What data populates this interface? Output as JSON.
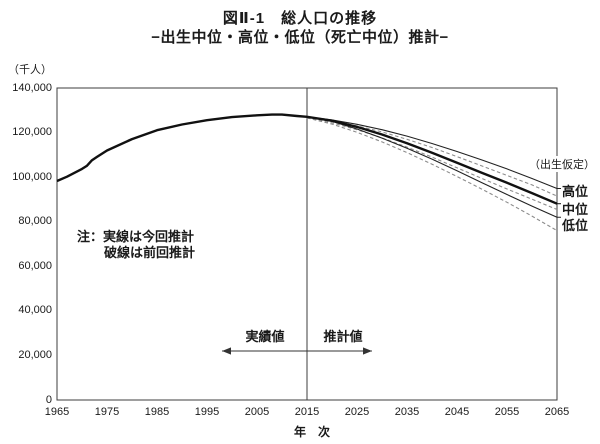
{
  "page": {
    "background": "#ffffff",
    "text_color": "#1a1a1a"
  },
  "chart_data": {
    "type": "line",
    "title": "図Ⅱ-1　総人口の推移",
    "subtitle": "−出生中位・高位・低位（死亡中位）推計−",
    "y_unit_label": "（千人）",
    "x_axis_label": "年　次",
    "xlim": [
      1965,
      2065
    ],
    "ylim": [
      0,
      140000
    ],
    "grid": false,
    "divider_year": 2015,
    "x_ticks": [
      "1965",
      "1975",
      "1985",
      "1995",
      "2005",
      "2015",
      "2025",
      "2035",
      "2045",
      "2055",
      "2065"
    ],
    "x_tick_values": [
      1965,
      1975,
      1985,
      1995,
      2005,
      2015,
      2025,
      2035,
      2045,
      2055,
      2065
    ],
    "y_ticks": [
      {
        "value": 0,
        "label": "0"
      },
      {
        "value": 20000,
        "label": "20,000"
      },
      {
        "value": 40000,
        "label": "40,000"
      },
      {
        "value": 60000,
        "label": "60,000"
      },
      {
        "value": 80000,
        "label": "80,000"
      },
      {
        "value": 100000,
        "label": "100,000"
      },
      {
        "value": 120000,
        "label": "120,000"
      },
      {
        "value": 140000,
        "label": "140,000"
      }
    ],
    "series": [
      {
        "key": "actual",
        "name": "実績値（総人口）",
        "line": "solid",
        "weight": "thick",
        "color": "#111111",
        "x": [
          1965,
          1967,
          1970,
          1971,
          1972,
          1973,
          1975,
          1980,
          1985,
          1990,
          1995,
          2000,
          2005,
          2008,
          2010,
          2013,
          2015
        ],
        "y": [
          98275,
          100196,
          103720,
          105145,
          107595,
          109104,
          111940,
          117060,
          121049,
          123611,
          125570,
          126926,
          127768,
          128084,
          128057,
          127414,
          127095
        ]
      },
      {
        "key": "prev_high",
        "name": "高位（前回推計・破線）",
        "line": "dashed",
        "weight": "thin",
        "color": "#8c8c8c",
        "x": [
          2015,
          2020,
          2025,
          2030,
          2035,
          2040,
          2045,
          2050,
          2055,
          2060,
          2065
        ],
        "y": [
          126600,
          125000,
          123000,
          120300,
          117000,
          113300,
          109200,
          105000,
          100800,
          96500,
          91500
        ]
      },
      {
        "key": "prev_med",
        "name": "中位（前回推計・破線）",
        "line": "dashed",
        "weight": "thin",
        "color": "#8c8c8c",
        "x": [
          2015,
          2020,
          2025,
          2030,
          2035,
          2040,
          2045,
          2050,
          2055,
          2060,
          2065
        ],
        "y": [
          126600,
          124400,
          121300,
          117600,
          113500,
          109000,
          104200,
          99400,
          94700,
          90100,
          85500
        ]
      },
      {
        "key": "prev_low",
        "name": "低位（前回推計・破線）",
        "line": "dashed",
        "weight": "thin",
        "color": "#8c8c8c",
        "x": [
          2015,
          2020,
          2025,
          2030,
          2035,
          2040,
          2045,
          2050,
          2055,
          2060,
          2065
        ],
        "y": [
          126600,
          123800,
          120100,
          115800,
          111000,
          105800,
          100300,
          94600,
          88700,
          82500,
          76000
        ]
      },
      {
        "key": "current_high",
        "name": "高位（今回推計）",
        "line": "solid",
        "weight": "thin",
        "color": "#222222",
        "leader": true,
        "x": [
          2015,
          2020,
          2025,
          2030,
          2035,
          2040,
          2045,
          2050,
          2055,
          2060,
          2065
        ],
        "y": [
          127095,
          125700,
          123700,
          121300,
          118400,
          115100,
          111500,
          107700,
          103700,
          99400,
          94900
        ]
      },
      {
        "key": "current_low",
        "name": "低位（今回推計）",
        "line": "solid",
        "weight": "thin",
        "color": "#222222",
        "leader": true,
        "x": [
          2015,
          2020,
          2025,
          2030,
          2035,
          2040,
          2045,
          2050,
          2055,
          2060,
          2065
        ],
        "y": [
          127095,
          125000,
          121600,
          117500,
          113000,
          108100,
          102900,
          97500,
          92200,
          87000,
          82000
        ]
      },
      {
        "key": "current_med",
        "name": "中位（今回推計）",
        "line": "solid",
        "weight": "thick",
        "color": "#111111",
        "leader": true,
        "x": [
          2015,
          2020,
          2025,
          2030,
          2035,
          2040,
          2045,
          2050,
          2055,
          2060,
          2065
        ],
        "y": [
          127095,
          125325,
          122544,
          119125,
          115216,
          110919,
          106421,
          101923,
          97441,
          92840,
          88077
        ]
      }
    ],
    "annotations": {
      "note_line1": "注：実線は今回推計",
      "note_line2": "破線は前回推計",
      "actual_span_label": "実績値",
      "projection_span_label": "推計値",
      "assumption_label": "（出生仮定）",
      "variant_labels": [
        {
          "label": "高位",
          "series": "current_high"
        },
        {
          "label": "中位",
          "series": "current_med"
        },
        {
          "label": "低位",
          "series": "current_low"
        }
      ]
    }
  }
}
